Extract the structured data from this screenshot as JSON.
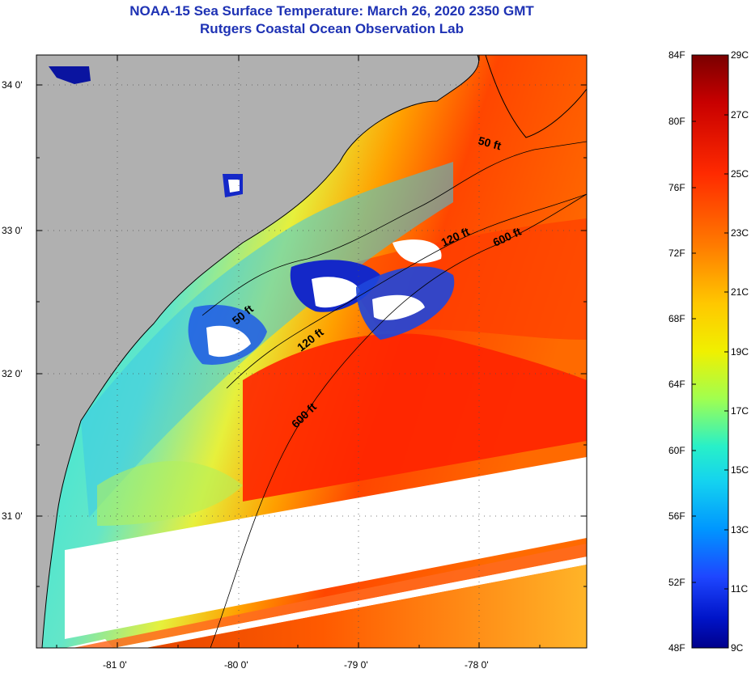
{
  "title": {
    "line1": "NOAA-15 Sea Surface Temperature:  March 26, 2020 2350 GMT",
    "line2": "Rutgers Coastal Ocean Observation Lab"
  },
  "map": {
    "lat_labels": [
      "34 0'",
      "33 0'",
      "32 0'",
      "31 0'"
    ],
    "lon_labels": [
      "-81 0'",
      "-80 0'",
      "-79 0'",
      "-78 0'"
    ],
    "isobaths": [
      {
        "id": "50a",
        "label": "50 ft"
      },
      {
        "id": "50b",
        "label": "50 ft"
      },
      {
        "id": "120a",
        "label": "120 ft"
      },
      {
        "id": "120b",
        "label": "120 ft"
      },
      {
        "id": "600a",
        "label": "600 ft"
      },
      {
        "id": "600b",
        "label": "600 ft"
      }
    ],
    "colors": {
      "land": "#b0b0b0",
      "nodata": "#ffffff",
      "coast": "#000000"
    }
  },
  "colorbar": {
    "fahrenheit": [
      "84F",
      "80F",
      "76F",
      "72F",
      "68F",
      "64F",
      "60F",
      "56F",
      "52F",
      "48F"
    ],
    "celsius": [
      "29C",
      "27C",
      "25C",
      "23C",
      "21C",
      "19C",
      "17C",
      "15C",
      "13C",
      "11C",
      "9C"
    ],
    "colors": [
      "#7a0000",
      "#c80000",
      "#ff2a00",
      "#ff7a00",
      "#ffb400",
      "#fff000",
      "#c8ff3c",
      "#64ff96",
      "#14e6e6",
      "#00aaff",
      "#1e50ff",
      "#0014c8",
      "#00008c"
    ]
  }
}
